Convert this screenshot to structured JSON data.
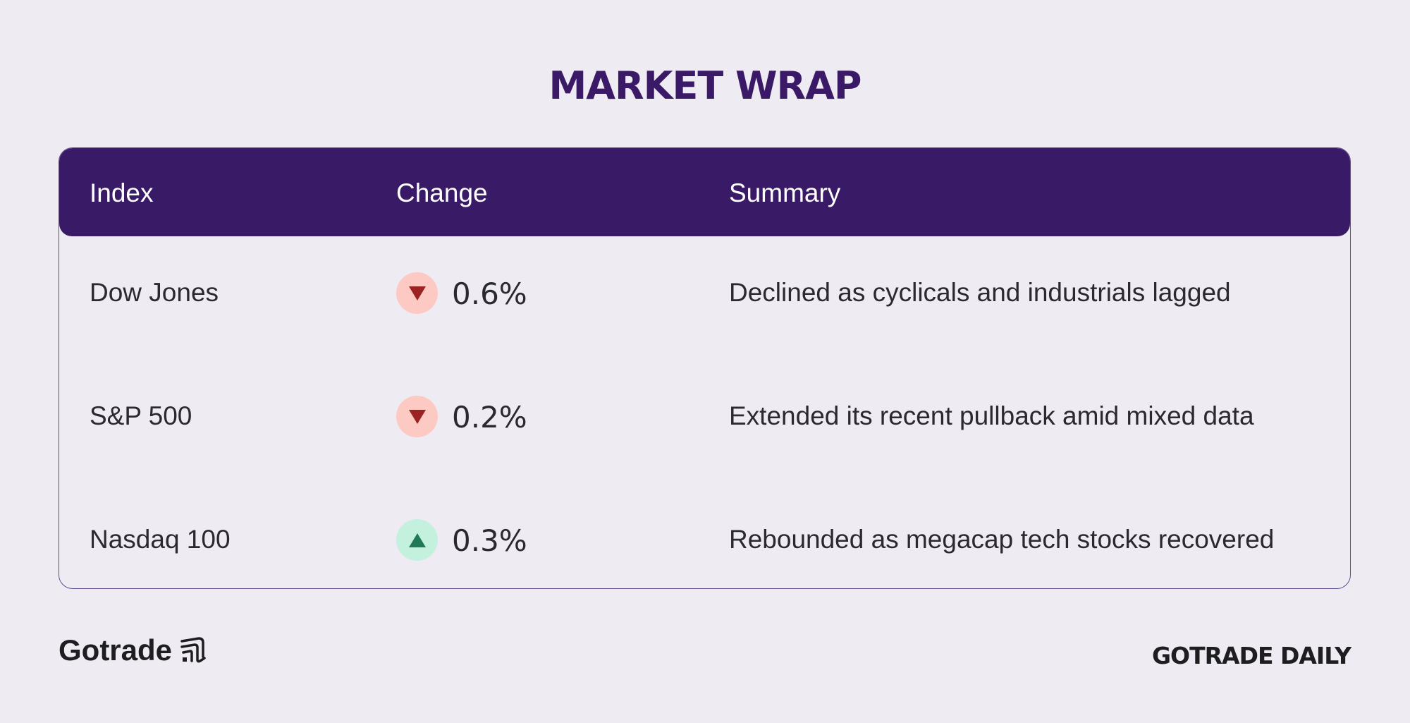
{
  "title": "MARKET WRAP",
  "table": {
    "headers": [
      "Index",
      "Change",
      "Summary"
    ],
    "rows": [
      {
        "index": "Dow Jones",
        "direction": "down",
        "change": "0.6%",
        "summary": "Declined as cyclicals and industrials lagged"
      },
      {
        "index": "S&P 500",
        "direction": "down",
        "change": "0.2%",
        "summary": "Extended its recent pullback amid mixed data"
      },
      {
        "index": "Nasdaq 100",
        "direction": "up",
        "change": "0.3%",
        "summary": "Rebounded as megacap tech stocks recovered"
      }
    ]
  },
  "colors": {
    "header_bg": "#391a66",
    "down_badge": "#fdc9c3",
    "down_arrow": "#9a2222",
    "up_badge": "#c4f0de",
    "up_arrow": "#1f7a55"
  },
  "footer": {
    "logo": "Gotrade",
    "brand": "GOTRADE DAILY"
  }
}
